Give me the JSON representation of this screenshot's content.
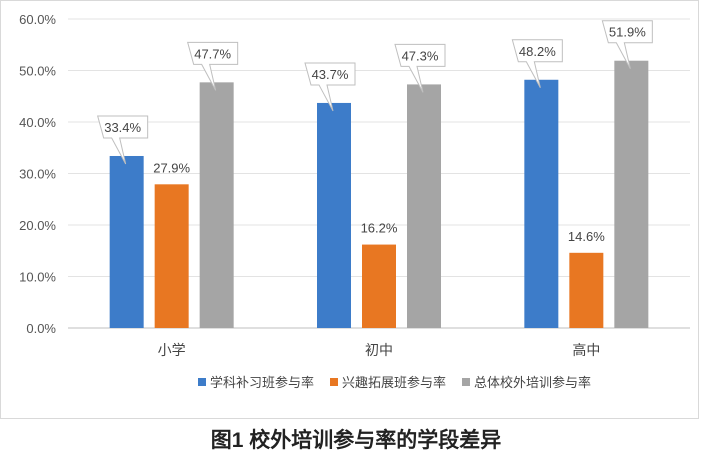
{
  "chart_data": {
    "type": "bar",
    "title": "图1  校外培训参与率的学段差异",
    "categories": [
      "小学",
      "初中",
      "高中"
    ],
    "series": [
      {
        "name": "学科补习班参与率",
        "values": [
          33.4,
          43.7,
          48.2
        ],
        "color": "#3d7cc9",
        "labels": [
          "33.4%",
          "43.7%",
          "48.2%"
        ]
      },
      {
        "name": "兴趣拓展班参与率",
        "values": [
          27.9,
          16.2,
          14.6
        ],
        "color": "#e87722",
        "labels": [
          "27.9%",
          "16.2%",
          "14.6%"
        ]
      },
      {
        "name": "总体校外培训参与率",
        "values": [
          47.7,
          47.3,
          51.9
        ],
        "color": "#a5a5a5",
        "labels": [
          "47.7%",
          "47.3%",
          "51.9%"
        ]
      }
    ],
    "yticks": [
      "0.0%",
      "10.0%",
      "20.0%",
      "30.0%",
      "40.0%",
      "50.0%",
      "60.0%"
    ],
    "ylim": [
      0,
      60
    ],
    "grid": true,
    "legend_position": "bottom"
  }
}
